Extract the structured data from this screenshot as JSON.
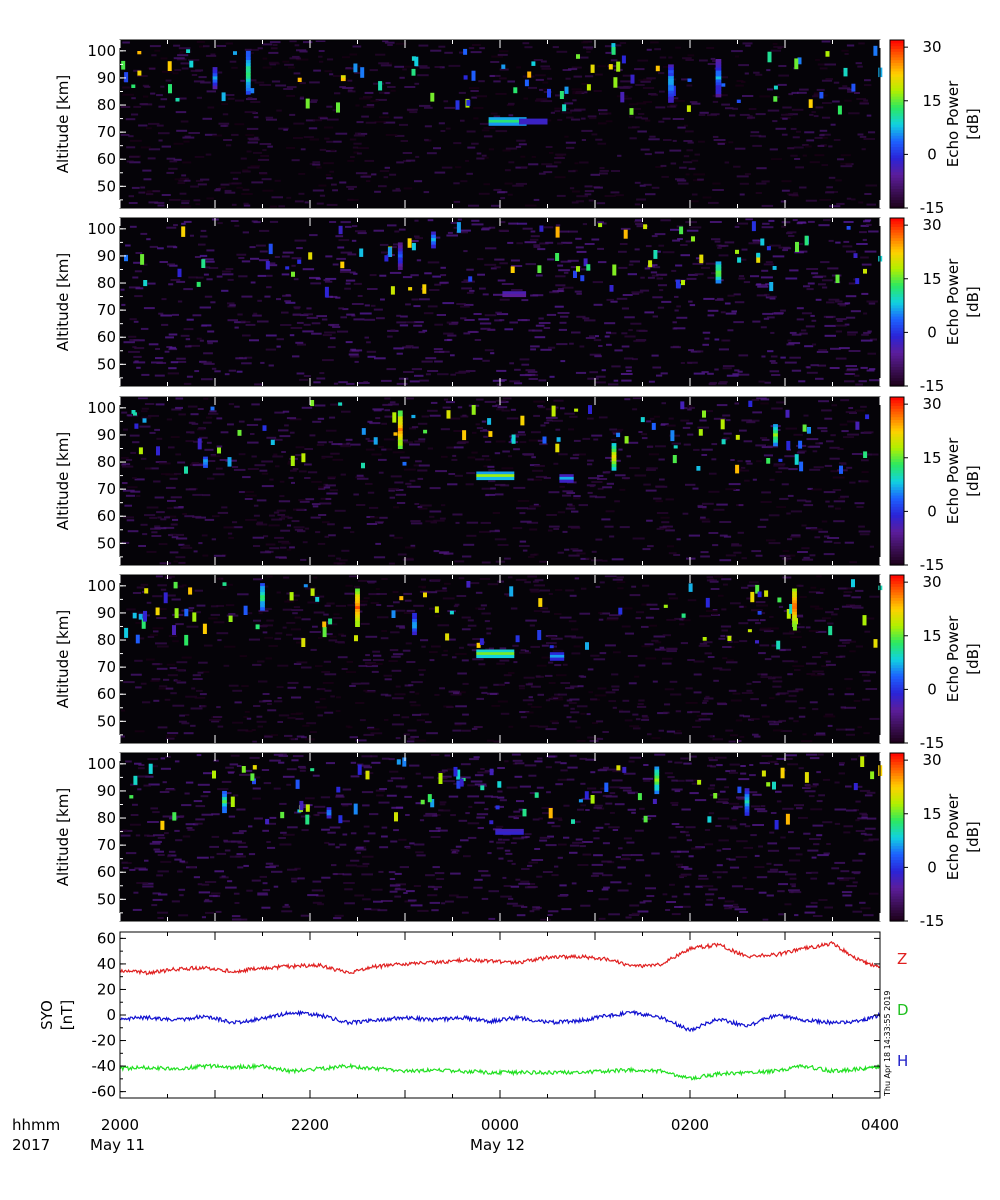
{
  "colors": {
    "background": "#ffffff",
    "panel_background": "#050308",
    "axis": "#000000",
    "colormap": [
      "#1a0016",
      "#3c0f56",
      "#5c1d9c",
      "#2a24d8",
      "#1d62ff",
      "#11d2e0",
      "#2ce860",
      "#b2f000",
      "#ffd000",
      "#ff6a00",
      "#ff0000"
    ],
    "Z": "#e02020",
    "D": "#20c020",
    "H": "#2020c8",
    "D_trace": "#1010d0",
    "H_trace": "#20e020"
  },
  "chart_data": [
    {
      "type": "heatmap",
      "panel": 1,
      "ylabel": "Altitude [km]",
      "yticks": [
        50,
        60,
        70,
        80,
        90,
        100
      ],
      "ylim": [
        42,
        104
      ],
      "xlim_hours": [
        0,
        8
      ],
      "colorbar_label": "Echo Power [dB]",
      "colorbar_ticks": [
        -15,
        0,
        15,
        30
      ],
      "colorbar_range": [
        -15,
        32
      ],
      "noise_db": -12,
      "features": [
        {
          "t": 4.08,
          "alt": 74,
          "db": 15,
          "dt": 0.4,
          "dalt": 3
        },
        {
          "t": 4.35,
          "alt": 74,
          "db": 5,
          "dt": 0.3,
          "dalt": 2
        },
        {
          "t": 2.35,
          "alt": 90,
          "db": 30,
          "dt": 0.05,
          "dalt": 2
        },
        {
          "t": 1.35,
          "alt": 92,
          "db": 15,
          "dt": 0.05,
          "dalt": 16
        },
        {
          "t": 5.8,
          "alt": 88,
          "db": 10,
          "dt": 0.06,
          "dalt": 14
        },
        {
          "t": 6.3,
          "alt": 90,
          "db": 8,
          "dt": 0.06,
          "dalt": 14
        },
        {
          "t": 1.0,
          "alt": 90,
          "db": 8,
          "dt": 0.05,
          "dalt": 8
        }
      ]
    },
    {
      "type": "heatmap",
      "panel": 2,
      "ylabel": "Altitude [km]",
      "yticks": [
        50,
        60,
        70,
        80,
        90,
        100
      ],
      "ylim": [
        42,
        104
      ],
      "xlim_hours": [
        0,
        8
      ],
      "colorbar_label": "Echo Power [dB]",
      "colorbar_ticks": [
        -15,
        0,
        15,
        30
      ],
      "colorbar_range": [
        -15,
        32
      ],
      "noise_db": -9,
      "features": [
        {
          "t": 4.15,
          "alt": 76,
          "db": 2,
          "dt": 0.25,
          "dalt": 2
        },
        {
          "t": 6.3,
          "alt": 84,
          "db": 18,
          "dt": 0.06,
          "dalt": 8
        },
        {
          "t": 3.3,
          "alt": 96,
          "db": 10,
          "dt": 0.05,
          "dalt": 6
        },
        {
          "t": 2.95,
          "alt": 90,
          "db": 5,
          "dt": 0.05,
          "dalt": 10
        }
      ]
    },
    {
      "type": "heatmap",
      "panel": 3,
      "ylabel": "Altitude [km]",
      "yticks": [
        50,
        60,
        70,
        80,
        90,
        100
      ],
      "ylim": [
        42,
        104
      ],
      "xlim_hours": [
        0,
        8
      ],
      "colorbar_label": "Echo Power [dB]",
      "colorbar_ticks": [
        -15,
        0,
        15,
        30
      ],
      "colorbar_range": [
        -15,
        32
      ],
      "noise_db": -11,
      "features": [
        {
          "t": 3.95,
          "alt": 75,
          "db": 18,
          "dt": 0.4,
          "dalt": 3
        },
        {
          "t": 4.7,
          "alt": 74,
          "db": 8,
          "dt": 0.15,
          "dalt": 3
        },
        {
          "t": 2.95,
          "alt": 92,
          "db": 28,
          "dt": 0.05,
          "dalt": 14
        },
        {
          "t": 5.2,
          "alt": 82,
          "db": 22,
          "dt": 0.05,
          "dalt": 10
        },
        {
          "t": 6.9,
          "alt": 90,
          "db": 18,
          "dt": 0.05,
          "dalt": 8
        },
        {
          "t": 0.9,
          "alt": 80,
          "db": 12,
          "dt": 0.05,
          "dalt": 4
        }
      ]
    },
    {
      "type": "heatmap",
      "panel": 4,
      "ylabel": "Altitude [km]",
      "yticks": [
        50,
        60,
        70,
        80,
        90,
        100
      ],
      "ylim": [
        42,
        104
      ],
      "xlim_hours": [
        0,
        8
      ],
      "colorbar_label": "Echo Power [dB]",
      "colorbar_ticks": [
        -15,
        0,
        15,
        30
      ],
      "colorbar_range": [
        -15,
        32
      ],
      "noise_db": -12,
      "features": [
        {
          "t": 3.95,
          "alt": 75,
          "db": 18,
          "dt": 0.4,
          "dalt": 3
        },
        {
          "t": 4.6,
          "alt": 74,
          "db": 10,
          "dt": 0.15,
          "dalt": 3
        },
        {
          "t": 2.5,
          "alt": 92,
          "db": 30,
          "dt": 0.05,
          "dalt": 14
        },
        {
          "t": 7.1,
          "alt": 92,
          "db": 30,
          "dt": 0.05,
          "dalt": 14
        },
        {
          "t": 1.5,
          "alt": 96,
          "db": 15,
          "dt": 0.05,
          "dalt": 10
        },
        {
          "t": 3.1,
          "alt": 86,
          "db": 10,
          "dt": 0.05,
          "dalt": 8
        }
      ]
    },
    {
      "type": "heatmap",
      "panel": 5,
      "ylabel": "Altitude [km]",
      "yticks": [
        50,
        60,
        70,
        80,
        90,
        100
      ],
      "ylim": [
        42,
        104
      ],
      "xlim_hours": [
        0,
        8
      ],
      "colorbar_label": "Echo Power [dB]",
      "colorbar_ticks": [
        -15,
        0,
        15,
        30
      ],
      "colorbar_range": [
        -15,
        32
      ],
      "noise_db": -10,
      "features": [
        {
          "t": 4.1,
          "alt": 75,
          "db": 6,
          "dt": 0.3,
          "dalt": 2
        },
        {
          "t": 5.65,
          "alt": 94,
          "db": 18,
          "dt": 0.05,
          "dalt": 10
        },
        {
          "t": 1.1,
          "alt": 86,
          "db": 15,
          "dt": 0.05,
          "dalt": 8
        },
        {
          "t": 6.6,
          "alt": 86,
          "db": 12,
          "dt": 0.05,
          "dalt": 10
        },
        {
          "t": 2.2,
          "alt": 82,
          "db": 10,
          "dt": 0.05,
          "dalt": 4
        }
      ]
    },
    {
      "type": "line",
      "panel": 6,
      "ylabel": "SYO\n[nT]",
      "ylabel_lines": [
        "SYO",
        "[nT]"
      ],
      "yticks": [
        -60,
        -40,
        -20,
        0,
        20,
        40,
        60
      ],
      "ylim": [
        -65,
        65
      ],
      "xlim_hours": [
        0,
        8
      ],
      "series": [
        {
          "name": "Z",
          "color": "#e02020",
          "x": [
            0.0,
            0.3,
            0.6,
            0.9,
            1.2,
            1.5,
            1.8,
            2.1,
            2.4,
            2.7,
            3.0,
            3.3,
            3.6,
            3.9,
            4.2,
            4.5,
            4.8,
            5.1,
            5.4,
            5.7,
            6.0,
            6.3,
            6.6,
            6.9,
            7.2,
            7.5,
            7.8,
            8.0
          ],
          "values": [
            35,
            33,
            36,
            37,
            34,
            37,
            38,
            39,
            33,
            38,
            40,
            41,
            43,
            42,
            41,
            45,
            46,
            44,
            38,
            40,
            52,
            55,
            46,
            47,
            52,
            56,
            42,
            37
          ]
        },
        {
          "name": "D",
          "color": "#1010d0",
          "x": [
            0.0,
            0.3,
            0.6,
            0.9,
            1.2,
            1.5,
            1.8,
            2.1,
            2.4,
            2.7,
            3.0,
            3.3,
            3.6,
            3.9,
            4.2,
            4.5,
            4.8,
            5.1,
            5.4,
            5.7,
            6.0,
            6.3,
            6.6,
            6.9,
            7.2,
            7.5,
            7.8,
            8.0
          ],
          "values": [
            -3,
            -2,
            -4,
            -1,
            -6,
            -3,
            2,
            0,
            -6,
            -4,
            -2,
            -4,
            -2,
            -5,
            -2,
            -6,
            -5,
            -1,
            2,
            -2,
            -12,
            -3,
            -9,
            0,
            -4,
            -6,
            -5,
            0
          ]
        },
        {
          "name": "H",
          "color": "#20e020",
          "x": [
            0.0,
            0.3,
            0.6,
            0.9,
            1.2,
            1.5,
            1.8,
            2.1,
            2.4,
            2.7,
            3.0,
            3.3,
            3.6,
            3.9,
            4.2,
            4.5,
            4.8,
            5.1,
            5.4,
            5.7,
            6.0,
            6.3,
            6.6,
            6.9,
            7.2,
            7.5,
            7.8,
            8.0
          ],
          "values": [
            -42,
            -41,
            -42,
            -40,
            -41,
            -40,
            -44,
            -42,
            -40,
            -42,
            -44,
            -43,
            -44,
            -45,
            -45,
            -45,
            -45,
            -44,
            -43,
            -44,
            -50,
            -46,
            -45,
            -44,
            -40,
            -44,
            -42,
            -40
          ]
        }
      ],
      "legend": [
        "Z",
        "D",
        "H"
      ],
      "side_note": "Thu Apr 18 14:33:55 2019"
    }
  ],
  "xaxis": {
    "row_label": "hhmm",
    "year": "2017",
    "ticks": [
      {
        "hour": 0,
        "label": "2000",
        "date": "May 11"
      },
      {
        "hour": 2,
        "label": "2200",
        "date": ""
      },
      {
        "hour": 4,
        "label": "0000",
        "date": "May 12"
      },
      {
        "hour": 6,
        "label": "0200",
        "date": ""
      },
      {
        "hour": 8,
        "label": "0400",
        "date": ""
      }
    ],
    "minor_step_hours": 0.5
  }
}
